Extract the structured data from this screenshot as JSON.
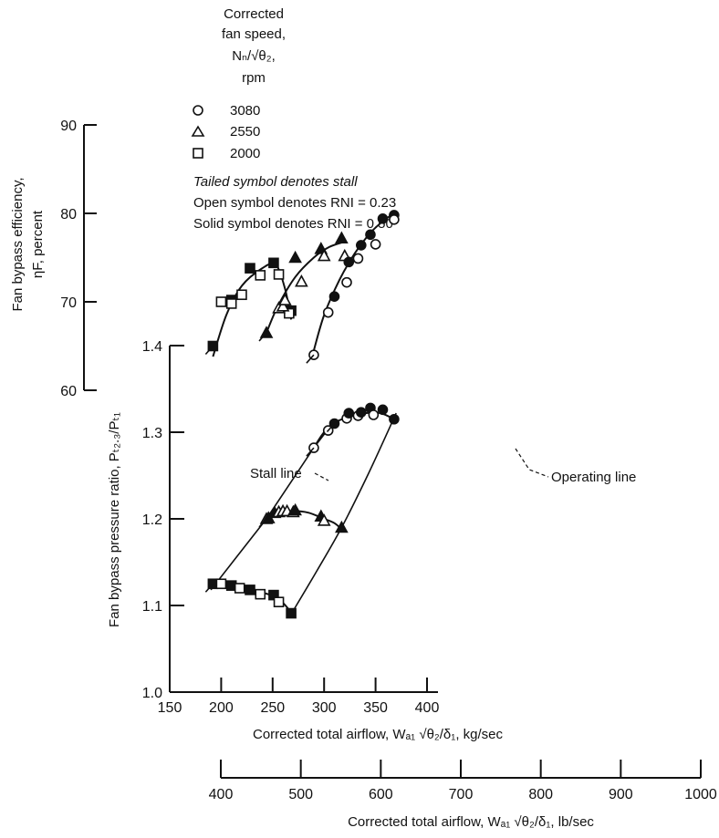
{
  "chart_data": {
    "type": "scatter",
    "legend": {
      "title_lines": [
        "Corrected",
        "fan speed,",
        "Nₙ/√θ₂,",
        "rpm"
      ],
      "entries": [
        {
          "symbol": "circle",
          "label": "3080"
        },
        {
          "symbol": "triangle",
          "label": "2550"
        },
        {
          "symbol": "square",
          "label": "2000"
        }
      ],
      "notes": [
        "Tailed symbol denotes stall",
        "Open symbol denotes RNI = 0.23",
        "Solid symbol denotes RNI = 0.50"
      ]
    },
    "x_axis_primary": {
      "label": "Corrected total airflow, Wₐ₁ √θ₂/δ₁, kg/sec",
      "range": [
        150,
        400
      ],
      "ticks": [
        "150",
        "200",
        "250",
        "300",
        "350",
        "400"
      ]
    },
    "x_axis_secondary": {
      "label": "Corrected total airflow, Wₐ₁ √θ₂/δ₁, lb/sec",
      "range": [
        400,
        1000
      ],
      "ticks": [
        "400",
        "500",
        "600",
        "700",
        "800",
        "900",
        "1000"
      ]
    },
    "y_axis_pressure": {
      "label": "Fan bypass pressure ratio, Pₜ₂.₃/Pₜ₁",
      "range": [
        1.0,
        1.4
      ],
      "ticks": [
        "1.0",
        "1.1",
        "1.2",
        "1.3",
        "1.4"
      ]
    },
    "y_axis_efficiency": {
      "label_lines": [
        "Fan bypass efficiency,",
        "ηF, percent"
      ],
      "range": [
        60,
        90
      ],
      "ticks": [
        "60",
        "70",
        "80",
        "90"
      ]
    },
    "annotations": [
      "Stall line",
      "Operating line"
    ],
    "efficiency_series": [
      {
        "speed": "2000",
        "symbol": "square",
        "points": [
          {
            "x": 192,
            "y": 65.0,
            "solid": true,
            "tail": true
          },
          {
            "x": 200,
            "y": 70.0,
            "solid": false,
            "tail": false
          },
          {
            "x": 210,
            "y": 70.2,
            "solid": true,
            "tail": false
          },
          {
            "x": 210,
            "y": 69.8,
            "solid": false,
            "tail": false
          },
          {
            "x": 220,
            "y": 70.8,
            "solid": false,
            "tail": false
          },
          {
            "x": 228,
            "y": 73.8,
            "solid": true,
            "tail": false
          },
          {
            "x": 238,
            "y": 73.0,
            "solid": false,
            "tail": false
          },
          {
            "x": 251,
            "y": 74.4,
            "solid": true,
            "tail": false
          },
          {
            "x": 256,
            "y": 73.1,
            "solid": false,
            "tail": false
          },
          {
            "x": 268,
            "y": 69.0,
            "solid": true,
            "tail": false
          },
          {
            "x": 266,
            "y": 68.7,
            "solid": false,
            "tail": false
          }
        ]
      },
      {
        "speed": "2550",
        "symbol": "triangle",
        "points": [
          {
            "x": 244,
            "y": 66.5,
            "solid": true,
            "tail": true
          },
          {
            "x": 256,
            "y": 69.3,
            "solid": false,
            "tail": false
          },
          {
            "x": 260,
            "y": 69.5,
            "solid": false,
            "tail": false
          },
          {
            "x": 262,
            "y": 70.2,
            "solid": false,
            "tail": false
          },
          {
            "x": 272,
            "y": 75.0,
            "solid": true,
            "tail": false
          },
          {
            "x": 278,
            "y": 72.3,
            "solid": false,
            "tail": false
          },
          {
            "x": 297,
            "y": 76.0,
            "solid": true,
            "tail": false
          },
          {
            "x": 300,
            "y": 75.2,
            "solid": false,
            "tail": false
          },
          {
            "x": 317,
            "y": 77.2,
            "solid": true,
            "tail": false
          },
          {
            "x": 320,
            "y": 75.2,
            "solid": false,
            "tail": false
          }
        ]
      },
      {
        "speed": "3080",
        "symbol": "circle",
        "points": [
          {
            "x": 290,
            "y": 64.0,
            "solid": false,
            "tail": true
          },
          {
            "x": 304,
            "y": 68.8,
            "solid": false,
            "tail": false
          },
          {
            "x": 310,
            "y": 70.6,
            "solid": true,
            "tail": false
          },
          {
            "x": 322,
            "y": 72.2,
            "solid": false,
            "tail": false
          },
          {
            "x": 324,
            "y": 74.5,
            "solid": true,
            "tail": false
          },
          {
            "x": 333,
            "y": 74.9,
            "solid": false,
            "tail": false
          },
          {
            "x": 336,
            "y": 76.4,
            "solid": true,
            "tail": false
          },
          {
            "x": 345,
            "y": 77.6,
            "solid": true,
            "tail": false
          },
          {
            "x": 350,
            "y": 76.5,
            "solid": false,
            "tail": false
          },
          {
            "x": 357,
            "y": 79.4,
            "solid": true,
            "tail": false
          },
          {
            "x": 368,
            "y": 79.8,
            "solid": true,
            "tail": false
          },
          {
            "x": 368,
            "y": 79.3,
            "solid": false,
            "tail": false
          }
        ]
      }
    ],
    "pressure_series": [
      {
        "speed": "2000",
        "symbol": "square",
        "points": [
          {
            "x": 192,
            "y": 1.125,
            "solid": true,
            "tail": true
          },
          {
            "x": 200,
            "y": 1.125,
            "solid": false,
            "tail": false
          },
          {
            "x": 210,
            "y": 1.123,
            "solid": true,
            "tail": false
          },
          {
            "x": 218,
            "y": 1.12,
            "solid": false,
            "tail": false
          },
          {
            "x": 228,
            "y": 1.118,
            "solid": true,
            "tail": false
          },
          {
            "x": 238,
            "y": 1.113,
            "solid": false,
            "tail": false
          },
          {
            "x": 251,
            "y": 1.112,
            "solid": true,
            "tail": false
          },
          {
            "x": 256,
            "y": 1.104,
            "solid": false,
            "tail": false
          },
          {
            "x": 268,
            "y": 1.091,
            "solid": true,
            "tail": false
          }
        ]
      },
      {
        "speed": "2550",
        "symbol": "triangle",
        "points": [
          {
            "x": 244,
            "y": 1.2,
            "solid": false,
            "tail": true
          },
          {
            "x": 246,
            "y": 1.201,
            "solid": true,
            "tail": false
          },
          {
            "x": 252,
            "y": 1.207,
            "solid": true,
            "tail": false
          },
          {
            "x": 256,
            "y": 1.208,
            "solid": false,
            "tail": false
          },
          {
            "x": 260,
            "y": 1.209,
            "solid": false,
            "tail": false
          },
          {
            "x": 264,
            "y": 1.209,
            "solid": false,
            "tail": false
          },
          {
            "x": 270,
            "y": 1.208,
            "solid": false,
            "tail": false
          },
          {
            "x": 272,
            "y": 1.21,
            "solid": true,
            "tail": false
          },
          {
            "x": 297,
            "y": 1.203,
            "solid": true,
            "tail": false
          },
          {
            "x": 300,
            "y": 1.198,
            "solid": false,
            "tail": false
          },
          {
            "x": 317,
            "y": 1.19,
            "solid": true,
            "tail": false
          }
        ]
      },
      {
        "speed": "3080",
        "symbol": "circle",
        "points": [
          {
            "x": 290,
            "y": 1.282,
            "solid": false,
            "tail": true
          },
          {
            "x": 304,
            "y": 1.302,
            "solid": false,
            "tail": false
          },
          {
            "x": 310,
            "y": 1.31,
            "solid": true,
            "tail": true
          },
          {
            "x": 322,
            "y": 1.316,
            "solid": false,
            "tail": false
          },
          {
            "x": 324,
            "y": 1.322,
            "solid": true,
            "tail": false
          },
          {
            "x": 333,
            "y": 1.319,
            "solid": false,
            "tail": false
          },
          {
            "x": 336,
            "y": 1.323,
            "solid": true,
            "tail": false
          },
          {
            "x": 345,
            "y": 1.328,
            "solid": true,
            "tail": false
          },
          {
            "x": 348,
            "y": 1.32,
            "solid": false,
            "tail": false
          },
          {
            "x": 357,
            "y": 1.326,
            "solid": true,
            "tail": false
          },
          {
            "x": 368,
            "y": 1.315,
            "solid": true,
            "tail": false
          }
        ]
      }
    ],
    "efficiency_curves": [
      {
        "speed": "2000",
        "x": [
          192,
          205,
          220,
          240,
          253,
          262,
          268
        ],
        "y": [
          63.8,
          68.5,
          71.8,
          73.8,
          74.2,
          71.5,
          68.0
        ]
      },
      {
        "speed": "2550",
        "x": [
          244,
          255,
          272,
          290,
          305,
          320
        ],
        "y": [
          66.5,
          69.5,
          72.8,
          75.0,
          76.2,
          76.8
        ]
      },
      {
        "speed": "3080",
        "x": [
          290,
          300,
          315,
          330,
          345,
          358,
          368
        ],
        "y": [
          64.5,
          68.5,
          72.5,
          75.5,
          77.8,
          79.2,
          80.0
        ]
      }
    ],
    "pressure_curves": [
      {
        "speed": "2000",
        "x": [
          192,
          210,
          230,
          250,
          260,
          268
        ],
        "y": [
          1.124,
          1.122,
          1.118,
          1.111,
          1.103,
          1.092
        ]
      },
      {
        "speed": "2550",
        "x": [
          244,
          255,
          270,
          285,
          300,
          310,
          317
        ],
        "y": [
          1.2,
          1.207,
          1.209,
          1.207,
          1.2,
          1.195,
          1.188
        ]
      },
      {
        "speed": "3080",
        "x": [
          290,
          300,
          312,
          325,
          340,
          355,
          368
        ],
        "y": [
          1.282,
          1.3,
          1.312,
          1.318,
          1.322,
          1.322,
          1.315
        ]
      }
    ],
    "stall_line": {
      "x": [
        190,
        244,
        290,
        310
      ],
      "y": [
        1.118,
        1.2,
        1.282,
        1.313
      ]
    },
    "operating_line": {
      "x": [
        268,
        293,
        317,
        343,
        370
      ],
      "y": [
        1.09,
        1.14,
        1.19,
        1.252,
        1.322
      ]
    }
  }
}
